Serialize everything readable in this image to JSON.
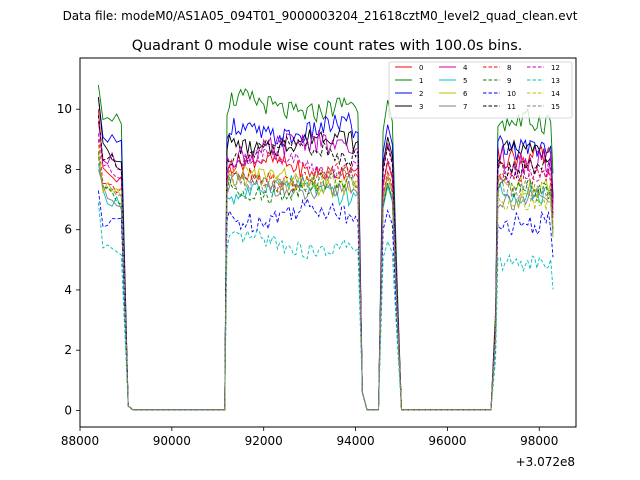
{
  "suptitle": "Data file: modeM0/AS1A05_094T01_9000003204_21618cztM0_level2_quad_clean.evt",
  "chart_data": {
    "type": "line",
    "title": "Quadrant 0 module wise count rates with 100.0s bins.",
    "xlabel": "",
    "ylabel": "",
    "x_offset_label": "+3.072e8",
    "xlim": [
      88000,
      98800
    ],
    "ylim": [
      -0.55,
      11.7
    ],
    "x_ticks": [
      88000,
      90000,
      92000,
      94000,
      96000,
      98000
    ],
    "y_ticks": [
      0,
      2,
      4,
      6,
      8,
      10
    ],
    "legend": {
      "placement": "top-right",
      "columns": 4
    },
    "segments": [
      {
        "start": 88400,
        "end": 89000,
        "peak_x": 88400
      },
      {
        "start": 91200,
        "end": 94100,
        "peak_x": null
      },
      {
        "start": 94600,
        "end": 94900,
        "peak_x": 94700
      },
      {
        "start": 97000,
        "end": 98300,
        "peak_x": null
      }
    ],
    "series": [
      {
        "name": "0",
        "color": "#ff0000",
        "dash": "solid",
        "start": 10.0,
        "level": 8.1,
        "amp": 0.3,
        "s3": 8.4
      },
      {
        "name": "1",
        "color": "#008000",
        "dash": "solid",
        "start": 10.8,
        "level": 10.1,
        "amp": 0.35,
        "s3": 9.6
      },
      {
        "name": "2",
        "color": "#0000ff",
        "dash": "solid",
        "start": 10.4,
        "level": 9.3,
        "amp": 0.35,
        "s3": 8.7
      },
      {
        "name": "3",
        "color": "#000000",
        "dash": "solid",
        "start": 10.4,
        "level": 8.9,
        "amp": 0.3,
        "s3": 8.6
      },
      {
        "name": "4",
        "color": "#bf00bf",
        "dash": "solid",
        "start": 9.6,
        "level": 8.7,
        "amp": 0.4,
        "s3": 8.3
      },
      {
        "name": "5",
        "color": "#00bfbf",
        "dash": "solid",
        "start": 8.2,
        "level": 7.3,
        "amp": 0.3,
        "s3": 7.2
      },
      {
        "name": "6",
        "color": "#bfbf00",
        "dash": "solid",
        "start": 8.5,
        "level": 7.6,
        "amp": 0.3,
        "s3": 7.5
      },
      {
        "name": "7",
        "color": "#808080",
        "dash": "solid",
        "start": 8.0,
        "level": 7.4,
        "amp": 0.3,
        "s3": 7.0
      },
      {
        "name": "8",
        "color": "#ff0000",
        "dash": "dashed",
        "start": 9.0,
        "level": 7.8,
        "amp": 0.3,
        "s3": 7.8
      },
      {
        "name": "9",
        "color": "#008000",
        "dash": "dashed",
        "start": 8.6,
        "level": 7.4,
        "amp": 0.3,
        "s3": 7.3
      },
      {
        "name": "10",
        "color": "#0000ff",
        "dash": "dashed",
        "start": 7.3,
        "level": 6.5,
        "amp": 0.35,
        "s3": 6.2
      },
      {
        "name": "11",
        "color": "#000000",
        "dash": "dashed",
        "start": 9.8,
        "level": 8.6,
        "amp": 0.3,
        "s3": 8.0
      },
      {
        "name": "12",
        "color": "#bf00bf",
        "dash": "dashed",
        "start": 9.2,
        "level": 8.2,
        "amp": 0.3,
        "s3": 7.9
      },
      {
        "name": "13",
        "color": "#00bfbf",
        "dash": "dashed",
        "start": 6.9,
        "level": 5.5,
        "amp": 0.25,
        "s3": 4.9
      },
      {
        "name": "14",
        "color": "#bfbf00",
        "dash": "dashed",
        "start": 8.8,
        "level": 7.7,
        "amp": 0.3,
        "s3": 7.0
      },
      {
        "name": "15",
        "color": "#808080",
        "dash": "dashed",
        "start": 8.4,
        "level": 7.6,
        "amp": 0.3,
        "s3": 7.3
      }
    ]
  }
}
